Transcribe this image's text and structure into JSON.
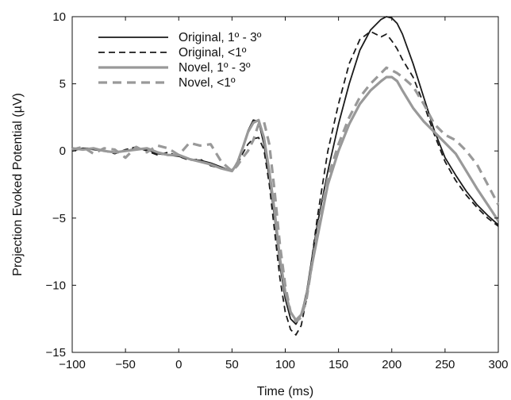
{
  "chart_data": {
    "type": "line",
    "title": "",
    "xlabel": "Time (ms)",
    "ylabel": "Projection Evoked Potential (µV)",
    "xlim": [
      -100,
      300
    ],
    "ylim": [
      -15,
      10
    ],
    "xticks": [
      -100,
      -50,
      0,
      50,
      100,
      150,
      200,
      250,
      300
    ],
    "yticks": [
      -15,
      -10,
      -5,
      0,
      5,
      10
    ],
    "xtick_labels": [
      "−100",
      "−50",
      "0",
      "50",
      "100",
      "150",
      "200",
      "250",
      "300"
    ],
    "ytick_labels": [
      "−15",
      "−10",
      "−5",
      "0",
      "5",
      "10"
    ],
    "grid": false,
    "legend_position": "top-left",
    "series": [
      {
        "name": "Original, 1º - 3º",
        "color": "#1a1a1a",
        "dash": "solid",
        "x": [
          -100,
          -90,
          -80,
          -70,
          -60,
          -50,
          -40,
          -30,
          -20,
          -10,
          0,
          10,
          20,
          30,
          40,
          50,
          55,
          60,
          65,
          70,
          75,
          80,
          85,
          90,
          95,
          100,
          105,
          110,
          115,
          120,
          125,
          130,
          140,
          150,
          160,
          170,
          180,
          190,
          195,
          200,
          205,
          210,
          220,
          230,
          240,
          250,
          260,
          270,
          280,
          290,
          300
        ],
        "y": [
          0.1,
          0.2,
          0.1,
          0,
          -0.1,
          0,
          0.2,
          0.1,
          -0.2,
          -0.3,
          -0.4,
          -0.6,
          -0.7,
          -0.9,
          -1.2,
          -1.5,
          -0.8,
          0.3,
          1.5,
          2.3,
          2.2,
          0.5,
          -2,
          -5,
          -8.5,
          -11,
          -12.5,
          -12.9,
          -12.2,
          -10.5,
          -8,
          -5.5,
          -1.5,
          2,
          5,
          7.5,
          9,
          9.8,
          10,
          9.9,
          9.5,
          8.7,
          6.5,
          4,
          1.5,
          -0.5,
          -1.8,
          -3,
          -4,
          -4.8,
          -5.5
        ]
      },
      {
        "name": "Original, <1º",
        "color": "#1a1a1a",
        "dash": "dashed",
        "x": [
          -100,
          -90,
          -80,
          -70,
          -60,
          -50,
          -40,
          -30,
          -20,
          -10,
          0,
          10,
          20,
          30,
          40,
          50,
          55,
          60,
          65,
          70,
          75,
          80,
          85,
          90,
          95,
          100,
          105,
          110,
          115,
          120,
          125,
          130,
          140,
          150,
          160,
          170,
          180,
          190,
          195,
          200,
          205,
          210,
          220,
          230,
          240,
          250,
          260,
          270,
          280,
          290,
          300
        ],
        "y": [
          0,
          0.2,
          0.2,
          0,
          -0.2,
          0.1,
          0.3,
          0,
          -0.3,
          -0.1,
          -0.4,
          -0.7,
          -0.6,
          -1.1,
          -1.3,
          -1.4,
          -1,
          -0.2,
          0.5,
          0.9,
          1,
          0.1,
          -2.5,
          -6,
          -9.5,
          -12,
          -13.3,
          -13.7,
          -13,
          -11,
          -8,
          -5,
          0,
          3.5,
          6.5,
          8.3,
          8.9,
          8.5,
          8.7,
          8.2,
          7.6,
          6.8,
          5.5,
          3.5,
          1.2,
          -0.8,
          -2.2,
          -3.3,
          -4.2,
          -5,
          -5.6
        ]
      },
      {
        "name": "Novel, 1º - 3º",
        "color": "#999999",
        "dash": "solid",
        "x": [
          -100,
          -90,
          -80,
          -70,
          -60,
          -50,
          -40,
          -30,
          -20,
          -10,
          0,
          10,
          20,
          30,
          40,
          50,
          55,
          60,
          65,
          70,
          75,
          80,
          85,
          90,
          95,
          100,
          105,
          110,
          115,
          120,
          125,
          130,
          140,
          150,
          160,
          170,
          180,
          190,
          195,
          200,
          205,
          210,
          220,
          230,
          240,
          250,
          260,
          270,
          280,
          290,
          300
        ],
        "y": [
          0.2,
          0.1,
          0.2,
          0,
          -0.1,
          0,
          0.1,
          0.2,
          -0.1,
          -0.3,
          -0.3,
          -0.6,
          -0.8,
          -1,
          -1.3,
          -1.5,
          -0.9,
          0.2,
          1.4,
          2.1,
          2.3,
          1,
          -1.5,
          -4.5,
          -8,
          -10.5,
          -12,
          -12.6,
          -12.2,
          -10.8,
          -8.5,
          -6.5,
          -2.5,
          0,
          2,
          3.5,
          4.5,
          5.2,
          5.5,
          5.5,
          5.2,
          4.5,
          3.2,
          2.2,
          1.4,
          0.6,
          -0.2,
          -1.5,
          -2.8,
          -4,
          -5.2
        ]
      },
      {
        "name": "Novel, <1º",
        "color": "#999999",
        "dash": "dashed",
        "x": [
          -100,
          -90,
          -80,
          -70,
          -60,
          -50,
          -40,
          -30,
          -20,
          -10,
          0,
          10,
          20,
          30,
          40,
          50,
          55,
          60,
          65,
          70,
          75,
          80,
          85,
          90,
          95,
          100,
          105,
          110,
          115,
          120,
          125,
          130,
          140,
          150,
          160,
          170,
          180,
          190,
          195,
          200,
          205,
          210,
          220,
          230,
          240,
          250,
          260,
          270,
          280,
          290,
          300
        ],
        "y": [
          0.1,
          0.3,
          -0.2,
          0.2,
          0.1,
          -0.5,
          0.3,
          -0.1,
          0.4,
          0.2,
          -0.3,
          0.6,
          0.4,
          0.5,
          -0.8,
          -1.5,
          -1.1,
          -0.5,
          0,
          0.8,
          2,
          2.2,
          0.5,
          -3,
          -7,
          -10,
          -12,
          -12.7,
          -12.4,
          -11,
          -8.5,
          -6,
          -2,
          0.5,
          2.5,
          4,
          5,
          5.8,
          6.2,
          6,
          5.8,
          5.5,
          4.8,
          3.5,
          2,
          1.2,
          0.8,
          0,
          -1,
          -2.5,
          -4
        ]
      }
    ]
  }
}
